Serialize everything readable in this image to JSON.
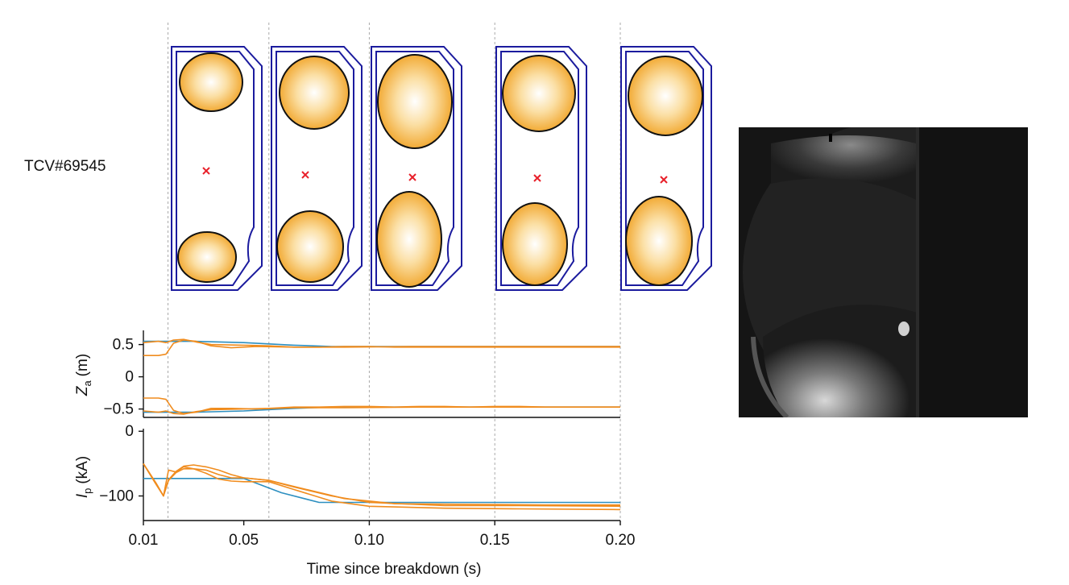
{
  "shot_label": "TCV#69545",
  "colors": {
    "vessel": "#1b1b9e",
    "plasma_edge": "#f0a020",
    "plasma_core": "#ffffff",
    "magnetic_axis": "#e8202a",
    "target": "#2d8fc0",
    "measured": "#f08c1e",
    "time_marker": "#aaaaaa"
  },
  "camera_image": {
    "type": "grayscale camera frame",
    "icon": "camera-frame"
  },
  "chart_data": [
    {
      "type": "line",
      "ylabel": "Z",
      "ylabel_sub": "a",
      "ylabel_unit": "(m)",
      "ylim": [
        -0.63,
        0.72
      ],
      "yticks": [
        0.5,
        0,
        -0.5
      ],
      "ytick_labels": [
        "0.5",
        "0",
        "−0.5"
      ],
      "series": [
        {
          "role": "target",
          "x": [
            0.01,
            0.03,
            0.05,
            0.07,
            0.085,
            0.1,
            0.2
          ],
          "y": [
            0.55,
            0.55,
            0.53,
            0.49,
            0.47,
            0.47,
            0.47
          ]
        },
        {
          "role": "measured",
          "x": [
            0.01,
            0.016,
            0.019,
            0.022,
            0.026,
            0.031,
            0.037,
            0.045,
            0.055,
            0.07,
            0.09,
            0.12,
            0.16,
            0.2
          ],
          "y": [
            0.33,
            0.33,
            0.35,
            0.52,
            0.57,
            0.55,
            0.48,
            0.45,
            0.47,
            0.46,
            0.46,
            0.47,
            0.47,
            0.47
          ]
        },
        {
          "role": "measured",
          "x": [
            0.01,
            0.016,
            0.019,
            0.022,
            0.026,
            0.031,
            0.037,
            0.05,
            0.06,
            0.07,
            0.08,
            0.09,
            0.1,
            0.11,
            0.12,
            0.13,
            0.14,
            0.15,
            0.16,
            0.17,
            0.2
          ],
          "y": [
            0.53,
            0.55,
            0.53,
            0.57,
            0.58,
            0.54,
            0.5,
            0.49,
            0.48,
            0.46,
            0.46,
            0.47,
            0.47,
            0.46,
            0.46,
            0.46,
            0.46,
            0.46,
            0.46,
            0.46,
            0.46
          ]
        },
        {
          "role": "target",
          "x": [
            0.01,
            0.03,
            0.05,
            0.07,
            0.085,
            0.1,
            0.2
          ],
          "y": [
            -0.55,
            -0.55,
            -0.53,
            -0.49,
            -0.47,
            -0.47,
            -0.47
          ]
        },
        {
          "role": "measured",
          "x": [
            0.01,
            0.016,
            0.019,
            0.022,
            0.026,
            0.031,
            0.037,
            0.045,
            0.055,
            0.07,
            0.09,
            0.12,
            0.16,
            0.2
          ],
          "y": [
            -0.33,
            -0.33,
            -0.35,
            -0.52,
            -0.57,
            -0.55,
            -0.49,
            -0.49,
            -0.5,
            -0.48,
            -0.48,
            -0.47,
            -0.47,
            -0.47
          ]
        },
        {
          "role": "measured",
          "x": [
            0.01,
            0.016,
            0.019,
            0.022,
            0.026,
            0.031,
            0.037,
            0.05,
            0.06,
            0.07,
            0.08,
            0.09,
            0.1,
            0.11,
            0.12,
            0.13,
            0.14,
            0.15,
            0.16,
            0.17,
            0.2
          ],
          "y": [
            -0.53,
            -0.55,
            -0.53,
            -0.57,
            -0.58,
            -0.54,
            -0.51,
            -0.5,
            -0.49,
            -0.47,
            -0.47,
            -0.46,
            -0.46,
            -0.47,
            -0.46,
            -0.46,
            -0.47,
            -0.46,
            -0.46,
            -0.47,
            -0.47
          ]
        }
      ]
    },
    {
      "type": "line",
      "ylabel": "I",
      "ylabel_sub": "p",
      "ylabel_unit": "(kA)",
      "ylim": [
        -138,
        4
      ],
      "yticks": [
        0,
        -100
      ],
      "ytick_labels": [
        "0",
        "−100"
      ],
      "xlabel": "Time since breakdown (s)",
      "xlim": [
        0.01,
        0.2
      ],
      "xticks": [
        0.01,
        0.05,
        0.1,
        0.15,
        0.2
      ],
      "xtick_labels": [
        "0.01",
        "0.05",
        "0.10",
        "0.15",
        "0.20"
      ],
      "series": [
        {
          "role": "target",
          "x": [
            0.01,
            0.05,
            0.065,
            0.08,
            0.2
          ],
          "y": [
            -73,
            -73,
            -95,
            -110,
            -110
          ]
        },
        {
          "role": "measured",
          "x": [
            0.01,
            0.015,
            0.018,
            0.02,
            0.023,
            0.026,
            0.03,
            0.035,
            0.04,
            0.045,
            0.05,
            0.06,
            0.075,
            0.09,
            0.11,
            0.14,
            0.17,
            0.2
          ],
          "y": [
            -50,
            -82,
            -100,
            -60,
            -63,
            -55,
            -58,
            -60,
            -67,
            -72,
            -72,
            -76,
            -90,
            -104,
            -112,
            -113,
            -114,
            -114
          ]
        },
        {
          "role": "measured",
          "x": [
            0.01,
            0.015,
            0.018,
            0.02,
            0.023,
            0.026,
            0.03,
            0.035,
            0.04,
            0.045,
            0.05,
            0.06,
            0.07,
            0.085,
            0.1,
            0.13,
            0.16,
            0.2
          ],
          "y": [
            -50,
            -80,
            -100,
            -75,
            -62,
            -54,
            -52,
            -55,
            -60,
            -67,
            -72,
            -76,
            -86,
            -100,
            -110,
            -115,
            -115,
            -116
          ]
        },
        {
          "role": "measured",
          "x": [
            0.01,
            0.015,
            0.018,
            0.02,
            0.023,
            0.026,
            0.03,
            0.035,
            0.04,
            0.045,
            0.05,
            0.06,
            0.07,
            0.085,
            0.1,
            0.13,
            0.16,
            0.2
          ],
          "y": [
            -50,
            -80,
            -100,
            -76,
            -64,
            -58,
            -58,
            -65,
            -74,
            -77,
            -78,
            -78,
            -90,
            -108,
            -116,
            -119,
            -120,
            -121
          ]
        }
      ]
    }
  ]
}
